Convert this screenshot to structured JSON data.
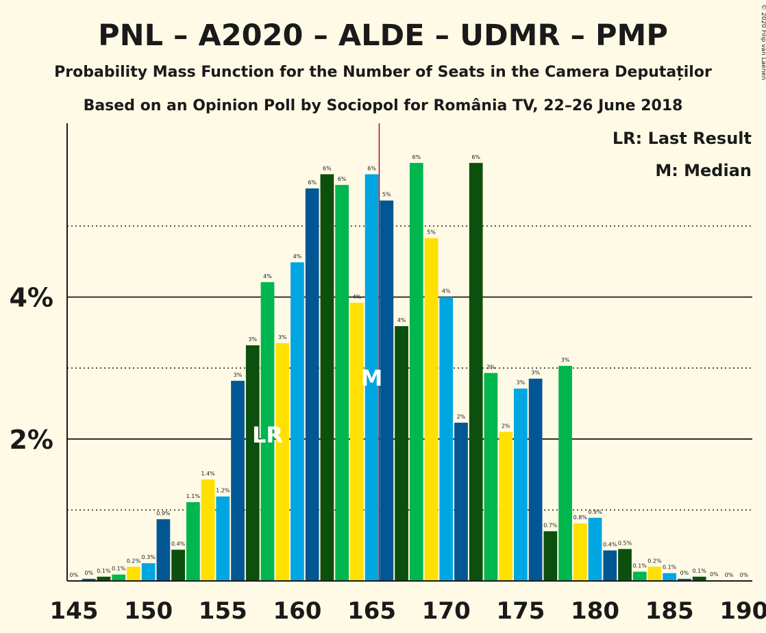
{
  "chart_data": {
    "type": "bar",
    "title": "PNL – A2020 – ALDE – UDMR – PMP",
    "subtitle1": "Probability Mass Function for the Number of Seats in the Camera Deputaților",
    "subtitle2": "Based on an Opinion Poll by Sociopol for România TV, 22–26 June 2018",
    "copyright": "© 2020 Filip van Laenen",
    "legend": {
      "lr": "LR: Last Result",
      "m": "M: Median"
    },
    "markers": {
      "lr_label": "LR",
      "lr_seat": 158,
      "m_label": "M",
      "m_seat": 165,
      "median_line_x": 165.5
    },
    "ylim": [
      0,
      6.4
    ],
    "y_ticks": [
      {
        "value": 2,
        "label": "2%"
      },
      {
        "value": 4,
        "label": "4%"
      }
    ],
    "y_dotted": [
      1,
      3,
      5
    ],
    "x_ticks": [
      {
        "value": 145,
        "label": "145"
      },
      {
        "value": 150,
        "label": "150"
      },
      {
        "value": 155,
        "label": "155"
      },
      {
        "value": 160,
        "label": "160"
      },
      {
        "value": 165,
        "label": "165"
      },
      {
        "value": 170,
        "label": "170"
      },
      {
        "value": 175,
        "label": "175"
      },
      {
        "value": 180,
        "label": "180"
      },
      {
        "value": 185,
        "label": "185"
      },
      {
        "value": 190,
        "label": "190"
      }
    ],
    "colors": [
      "#00a6e2",
      "#005794",
      "#0d4f0d",
      "#00b64e",
      "#ffe000"
    ],
    "median_color": "#c0001e",
    "bars": [
      {
        "x": 145,
        "value": 0.0,
        "label": "0%"
      },
      {
        "x": 146,
        "value": 0.03,
        "label": "0%"
      },
      {
        "x": 147,
        "value": 0.06,
        "label": "0.1%"
      },
      {
        "x": 148,
        "value": 0.09,
        "label": "0.1%"
      },
      {
        "x": 149,
        "value": 0.2,
        "label": "0.2%"
      },
      {
        "x": 150,
        "value": 0.25,
        "label": "0.3%"
      },
      {
        "x": 151,
        "value": 0.87,
        "label": "0.9%"
      },
      {
        "x": 152,
        "value": 0.44,
        "label": "0.4%"
      },
      {
        "x": 153,
        "value": 1.11,
        "label": "1.1%"
      },
      {
        "x": 154,
        "value": 1.43,
        "label": "1.4%"
      },
      {
        "x": 155,
        "value": 1.19,
        "label": "1.2%"
      },
      {
        "x": 156,
        "value": 2.82,
        "label": "3%"
      },
      {
        "x": 157,
        "value": 3.32,
        "label": "3%"
      },
      {
        "x": 158,
        "value": 4.21,
        "label": "4%"
      },
      {
        "x": 159,
        "value": 3.35,
        "label": "3%"
      },
      {
        "x": 160,
        "value": 4.49,
        "label": "4%"
      },
      {
        "x": 161,
        "value": 5.53,
        "label": "6%"
      },
      {
        "x": 162,
        "value": 5.73,
        "label": "6%"
      },
      {
        "x": 163,
        "value": 5.58,
        "label": "6%"
      },
      {
        "x": 164,
        "value": 3.92,
        "label": "4%"
      },
      {
        "x": 165,
        "value": 5.73,
        "label": "6%"
      },
      {
        "x": 166,
        "value": 5.36,
        "label": "5%"
      },
      {
        "x": 167,
        "value": 3.59,
        "label": "4%"
      },
      {
        "x": 168,
        "value": 5.89,
        "label": "6%"
      },
      {
        "x": 169,
        "value": 4.83,
        "label": "5%"
      },
      {
        "x": 170,
        "value": 4.0,
        "label": "4%"
      },
      {
        "x": 171,
        "value": 2.23,
        "label": "2%"
      },
      {
        "x": 172,
        "value": 5.89,
        "label": "6%"
      },
      {
        "x": 173,
        "value": 2.93,
        "label": "3%"
      },
      {
        "x": 174,
        "value": 2.1,
        "label": "2%"
      },
      {
        "x": 175,
        "value": 2.71,
        "label": "3%"
      },
      {
        "x": 176,
        "value": 2.85,
        "label": "3%"
      },
      {
        "x": 177,
        "value": 0.7,
        "label": "0.7%"
      },
      {
        "x": 178,
        "value": 3.03,
        "label": "3%"
      },
      {
        "x": 179,
        "value": 0.81,
        "label": "0.8%"
      },
      {
        "x": 180,
        "value": 0.89,
        "label": "0.9%"
      },
      {
        "x": 181,
        "value": 0.43,
        "label": "0.4%"
      },
      {
        "x": 182,
        "value": 0.45,
        "label": "0.5%"
      },
      {
        "x": 183,
        "value": 0.13,
        "label": "0.1%"
      },
      {
        "x": 184,
        "value": 0.2,
        "label": "0.2%"
      },
      {
        "x": 185,
        "value": 0.11,
        "label": "0.1%"
      },
      {
        "x": 186,
        "value": 0.03,
        "label": "0%"
      },
      {
        "x": 187,
        "value": 0.06,
        "label": "0.1%"
      },
      {
        "x": 188,
        "value": 0.01,
        "label": "0%"
      },
      {
        "x": 189,
        "value": 0.0,
        "label": "0%"
      },
      {
        "x": 190,
        "value": 0.0,
        "label": "0%"
      }
    ]
  }
}
